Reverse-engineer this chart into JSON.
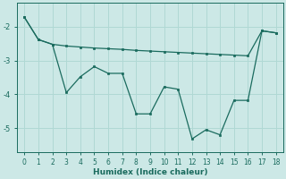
{
  "xlabel": "Humidex (Indice chaleur)",
  "bg_color": "#cce8e6",
  "line_color": "#1a6b5e",
  "grid_color": "#b0d8d4",
  "xlim": [
    -0.5,
    18.5
  ],
  "ylim": [
    -5.7,
    -1.3
  ],
  "yticks": [
    -5,
    -4,
    -3,
    -2
  ],
  "xticks": [
    0,
    1,
    2,
    3,
    4,
    5,
    6,
    7,
    8,
    9,
    10,
    11,
    12,
    13,
    14,
    15,
    16,
    17,
    18
  ],
  "series1_x": [
    0,
    1,
    2,
    3,
    4,
    5,
    6,
    7,
    8,
    9,
    10,
    11,
    12,
    13,
    14,
    15,
    16,
    17,
    18
  ],
  "series1_y": [
    -1.72,
    -2.38,
    -2.52,
    -2.57,
    -2.6,
    -2.63,
    -2.65,
    -2.67,
    -2.7,
    -2.72,
    -2.74,
    -2.76,
    -2.78,
    -2.8,
    -2.82,
    -2.84,
    -2.86,
    -2.12,
    -2.18
  ],
  "series2_x": [
    0,
    1,
    2,
    3,
    4,
    5,
    6,
    7,
    8,
    9,
    10,
    11,
    12,
    13,
    14,
    15,
    16,
    17,
    18
  ],
  "series2_y": [
    -1.72,
    -2.38,
    -2.52,
    -3.95,
    -3.48,
    -3.18,
    -3.38,
    -3.38,
    -4.58,
    -4.58,
    -3.78,
    -3.85,
    -5.32,
    -5.05,
    -5.2,
    -4.18,
    -4.18,
    -2.12,
    -2.18
  ]
}
